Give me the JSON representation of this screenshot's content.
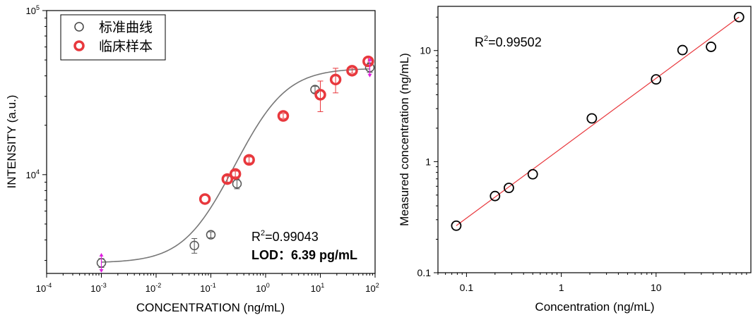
{
  "chart_data": [
    {
      "type": "scatter",
      "xscale": "log",
      "yscale": "log",
      "xlabel": "CONCENTRATION (ng/mL)",
      "ylabel": "INTENSITY (a.u.)",
      "xlim": [
        0.0001,
        100
      ],
      "ylim": [
        2500,
        100000
      ],
      "x_ticks": [
        {
          "value": 0.0001,
          "base": "10",
          "exp": "-4"
        },
        {
          "value": 0.001,
          "base": "10",
          "exp": "-3"
        },
        {
          "value": 0.01,
          "base": "10",
          "exp": "-2"
        },
        {
          "value": 0.1,
          "base": "10",
          "exp": "-1"
        },
        {
          "value": 1,
          "base": "10",
          "exp": "0"
        },
        {
          "value": 10,
          "base": "10",
          "exp": "1"
        },
        {
          "value": 100,
          "base": "10",
          "exp": "2"
        }
      ],
      "y_ticks": [
        {
          "value": 10000,
          "base": "10",
          "exp": "4"
        },
        {
          "value": 100000,
          "base": "10",
          "exp": "5"
        }
      ],
      "legend": [
        {
          "label": "标准曲线",
          "color": "#444444",
          "style": "open-circle-thin"
        },
        {
          "label": "临床样本",
          "color": "#e8383d",
          "style": "open-circle-thick"
        }
      ],
      "series": [
        {
          "name": "标准曲线",
          "color": "#555555",
          "points": [
            {
              "x": 0.001,
              "y": 2900,
              "err": 180
            },
            {
              "x": 0.05,
              "y": 3700,
              "err": 380
            },
            {
              "x": 0.1,
              "y": 4300,
              "err": 180
            },
            {
              "x": 0.3,
              "y": 8800,
              "err": 600
            },
            {
              "x": 8,
              "y": 33000,
              "err": 1500
            },
            {
              "x": 80,
              "y": 45000,
              "err": 3000
            }
          ]
        },
        {
          "name": "临床样本",
          "color": "#e8383d",
          "points": [
            {
              "x": 0.078,
              "y": 7100,
              "err": 0
            },
            {
              "x": 0.2,
              "y": 9400,
              "err": 400
            },
            {
              "x": 0.28,
              "y": 10100,
              "err": 400
            },
            {
              "x": 0.5,
              "y": 12300,
              "err": 500
            },
            {
              "x": 2.1,
              "y": 22800,
              "err": 800
            },
            {
              "x": 10,
              "y": 30700,
              "err": 6500
            },
            {
              "x": 19,
              "y": 38000,
              "err": 6500
            },
            {
              "x": 38,
              "y": 43000,
              "err": 1500
            },
            {
              "x": 75,
              "y": 49000,
              "err": 2500
            }
          ]
        }
      ],
      "fit": {
        "type": "4PL",
        "bottom": 2900,
        "top": 44500,
        "ec50": 1.0,
        "hill": 1.05,
        "color": "#777777"
      },
      "lod_markers": [
        {
          "x": 0.001,
          "y": 2900,
          "color": "#e020e0"
        },
        {
          "x": 80,
          "y": 45000,
          "color": "#e020e0"
        }
      ],
      "annotation_r2": {
        "prefix": "R",
        "sup": "2",
        "value": "=0.99043"
      },
      "annotation_lod": "LOD：6.39 pg/mL",
      "annotation_lod_color": "#e8383d"
    },
    {
      "type": "scatter",
      "xscale": "log",
      "yscale": "log",
      "xlabel": "Concentration (ng/mL)",
      "ylabel": "Measured concentration (ng/mL)",
      "xlim": [
        0.05,
        100
      ],
      "ylim": [
        0.1,
        25
      ],
      "x_ticks": [
        {
          "value": 0.1,
          "label": "0.1"
        },
        {
          "value": 1,
          "label": "1"
        },
        {
          "value": 10,
          "label": "10"
        }
      ],
      "y_ticks": [
        {
          "value": 0.1,
          "label": "0.1"
        },
        {
          "value": 1,
          "label": "1"
        },
        {
          "value": 10,
          "label": "10"
        }
      ],
      "points": [
        {
          "x": 0.078,
          "y": 0.265
        },
        {
          "x": 0.2,
          "y": 0.49
        },
        {
          "x": 0.28,
          "y": 0.58
        },
        {
          "x": 0.5,
          "y": 0.77
        },
        {
          "x": 2.1,
          "y": 2.45
        },
        {
          "x": 10,
          "y": 5.5
        },
        {
          "x": 19,
          "y": 10.1
        },
        {
          "x": 38,
          "y": 10.8
        },
        {
          "x": 75,
          "y": 20
        }
      ],
      "marker_color": "#000000",
      "fit": {
        "x1": 0.078,
        "y1": 0.265,
        "x2": 75,
        "y2": 20,
        "color": "#e8383d"
      },
      "annotation_r2": {
        "prefix": "R",
        "sup": "2",
        "value": "=0.99502"
      }
    }
  ]
}
